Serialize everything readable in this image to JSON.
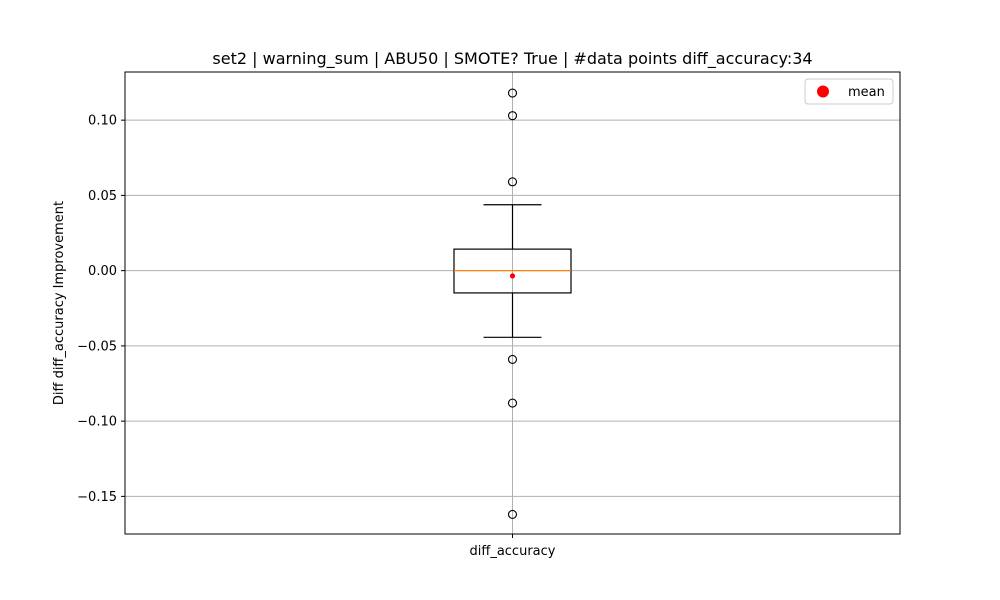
{
  "chart_data": {
    "type": "box",
    "title": "set2 | warning_sum | ABU50 | SMOTE? True | #data points diff_accuracy:34",
    "xlabel": "",
    "ylabel": "Diff diff_accuracy Improvement",
    "categories": [
      "diff_accuracy"
    ],
    "ylim": [
      -0.175,
      0.132
    ],
    "yticks": [
      -0.15,
      -0.1,
      -0.05,
      0.0,
      0.05,
      0.1
    ],
    "ytick_labels": [
      "−0.15",
      "−0.10",
      "−0.05",
      "0.00",
      "0.05",
      "0.10"
    ],
    "grid": true,
    "legend": {
      "position": "top-right",
      "entries": [
        {
          "label": "mean",
          "color": "#ff0000",
          "marker": "circle"
        }
      ]
    },
    "box": {
      "q1": -0.0148,
      "median": 0.0,
      "q3": 0.0143,
      "whisker_low": -0.0443,
      "whisker_high": 0.0438,
      "mean": -0.0035,
      "outliers": [
        0.118,
        0.103,
        0.059,
        -0.059,
        -0.088,
        -0.162
      ]
    },
    "colors": {
      "median": "#ff7f0e",
      "mean": "#ff0000",
      "grid": "#b0b0b0",
      "box": "#000000"
    }
  }
}
